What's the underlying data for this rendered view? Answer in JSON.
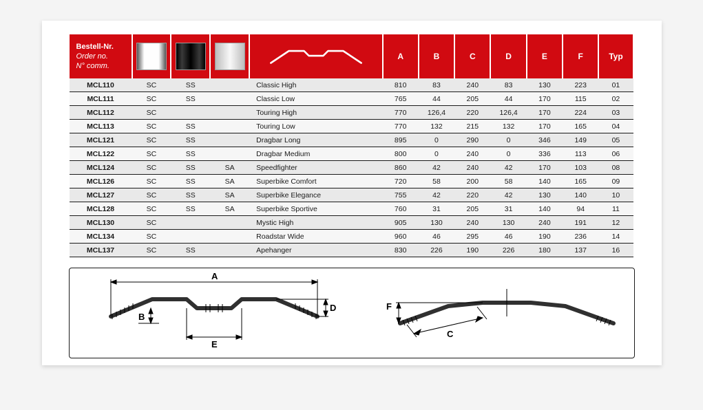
{
  "header": {
    "order_lines": [
      "Bestell-Nr.",
      "Order no.",
      "N° comm."
    ],
    "dimension_labels": [
      "A",
      "B",
      "C",
      "D",
      "E",
      "F"
    ],
    "typ_label": "Typ"
  },
  "colors": {
    "header_bg": "#d10a11",
    "header_fg": "#ffffff",
    "row_even": "#e9e9e9",
    "row_odd": "#f6f6f6",
    "rule": "#1a1a1a"
  },
  "rows": [
    {
      "order": "MCL110",
      "f1": "SC",
      "f2": "SS",
      "f3": "",
      "name": "Classic High",
      "A": "810",
      "B": "83",
      "C": "240",
      "D": "83",
      "E": "130",
      "F": "223",
      "typ": "01"
    },
    {
      "order": "MCL111",
      "f1": "SC",
      "f2": "SS",
      "f3": "",
      "name": "Classic Low",
      "A": "765",
      "B": "44",
      "C": "205",
      "D": "44",
      "E": "170",
      "F": "115",
      "typ": "02"
    },
    {
      "order": "MCL112",
      "f1": "SC",
      "f2": "",
      "f3": "",
      "name": "Touring High",
      "A": "770",
      "B": "126,4",
      "C": "220",
      "D": "126,4",
      "E": "170",
      "F": "224",
      "typ": "03"
    },
    {
      "order": "MCL113",
      "f1": "SC",
      "f2": "SS",
      "f3": "",
      "name": "Touring Low",
      "A": "770",
      "B": "132",
      "C": "215",
      "D": "132",
      "E": "170",
      "F": "165",
      "typ": "04"
    },
    {
      "order": "MCL121",
      "f1": "SC",
      "f2": "SS",
      "f3": "",
      "name": "Dragbar Long",
      "A": "895",
      "B": "0",
      "C": "290",
      "D": "0",
      "E": "346",
      "F": "149",
      "typ": "05"
    },
    {
      "order": "MCL122",
      "f1": "SC",
      "f2": "SS",
      "f3": "",
      "name": "Dragbar Medium",
      "A": "800",
      "B": "0",
      "C": "240",
      "D": "0",
      "E": "336",
      "F": "113",
      "typ": "06"
    },
    {
      "order": "MCL124",
      "f1": "SC",
      "f2": "SS",
      "f3": "SA",
      "name": "Speedfighter",
      "A": "860",
      "B": "42",
      "C": "240",
      "D": "42",
      "E": "170",
      "F": "103",
      "typ": "08"
    },
    {
      "order": "MCL126",
      "f1": "SC",
      "f2": "SS",
      "f3": "SA",
      "name": "Superbike Comfort",
      "A": "720",
      "B": "58",
      "C": "200",
      "D": "58",
      "E": "140",
      "F": "165",
      "typ": "09"
    },
    {
      "order": "MCL127",
      "f1": "SC",
      "f2": "SS",
      "f3": "SA",
      "name": "Superbike Elegance",
      "A": "755",
      "B": "42",
      "C": "220",
      "D": "42",
      "E": "130",
      "F": "140",
      "typ": "10"
    },
    {
      "order": "MCL128",
      "f1": "SC",
      "f2": "SS",
      "f3": "SA",
      "name": "Superbike Sportive",
      "A": "760",
      "B": "31",
      "C": "205",
      "D": "31",
      "E": "140",
      "F": "94",
      "typ": "11"
    },
    {
      "order": "MCL130",
      "f1": "SC",
      "f2": "",
      "f3": "",
      "name": "Mystic High",
      "A": "905",
      "B": "130",
      "C": "240",
      "D": "130",
      "E": "240",
      "F": "191",
      "typ": "12"
    },
    {
      "order": "MCL134",
      "f1": "SC",
      "f2": "",
      "f3": "",
      "name": "Roadstar Wide",
      "A": "960",
      "B": "46",
      "C": "295",
      "D": "46",
      "E": "190",
      "F": "236",
      "typ": "14"
    },
    {
      "order": "MCL137",
      "f1": "SC",
      "f2": "SS",
      "f3": "",
      "name": "Apehanger",
      "A": "830",
      "B": "226",
      "C": "190",
      "D": "226",
      "E": "180",
      "F": "137",
      "typ": "16"
    }
  ],
  "diagram_labels": {
    "A": "A",
    "B": "B",
    "C": "C",
    "D": "D",
    "E": "E",
    "F": "F"
  }
}
